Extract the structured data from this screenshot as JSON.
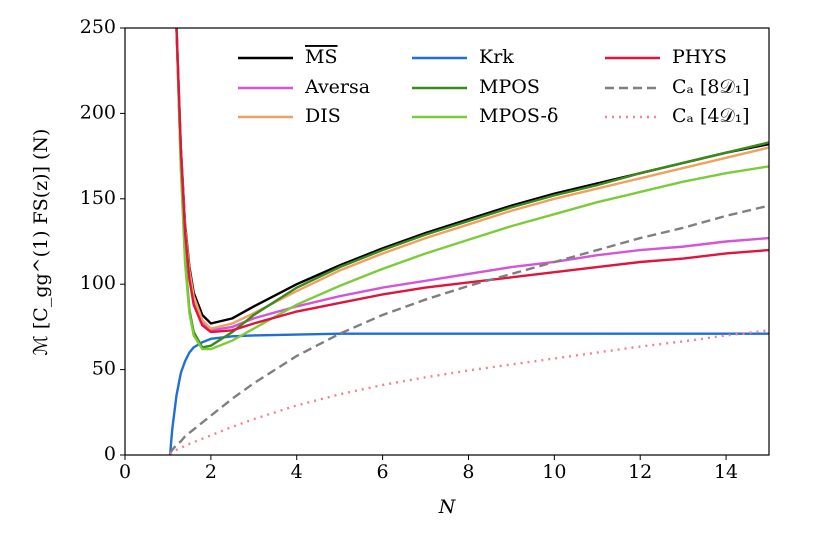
{
  "chart_data": {
    "type": "line",
    "xlabel": "N",
    "ylabel": "ℳ [C_gg^(1) FS(z)] (N)",
    "x": [
      1.05,
      1.1,
      1.2,
      1.3,
      1.4,
      1.5,
      1.6,
      1.8,
      2,
      2.5,
      3,
      4,
      5,
      6,
      7,
      8,
      9,
      10,
      11,
      12,
      13,
      14,
      15
    ],
    "xlim": [
      0,
      15
    ],
    "xticks": [
      0,
      2,
      4,
      6,
      8,
      10,
      12,
      14
    ],
    "ylim": [
      0,
      250
    ],
    "yticks": [
      0,
      50,
      100,
      150,
      200,
      250
    ],
    "grid": false,
    "legend": "top",
    "series": [
      {
        "name": "MS",
        "overline": true,
        "color": "#000000",
        "style": "solid",
        "values": [
          null,
          null,
          250,
          180,
          135,
          110,
          95,
          82,
          77,
          80,
          87,
          100,
          111,
          121,
          130,
          138,
          146,
          153,
          159,
          165,
          171,
          177,
          182
        ]
      },
      {
        "name": "Aversa",
        "color": "#d655d6",
        "style": "solid",
        "values": [
          null,
          null,
          250,
          178,
          132,
          106,
          92,
          78,
          73,
          75,
          80,
          87,
          93,
          98,
          102,
          106,
          110,
          113,
          117,
          120,
          122,
          125,
          127
        ]
      },
      {
        "name": "DIS",
        "color": "#f0a060",
        "style": "solid",
        "values": [
          null,
          null,
          250,
          178,
          133,
          108,
          93,
          79,
          74,
          77,
          83,
          96,
          108,
          118,
          127,
          135,
          143,
          150,
          156,
          162,
          168,
          174,
          180
        ]
      },
      {
        "name": "Krk",
        "color": "#1f6fd6",
        "style": "solid",
        "values": [
          0,
          15,
          35,
          48,
          55,
          60,
          63,
          66,
          68,
          69.5,
          70,
          70.5,
          71,
          71,
          71,
          71,
          71,
          71,
          71,
          71,
          71,
          71,
          71
        ]
      },
      {
        "name": "MPOS",
        "color": "#3a8a1a",
        "style": "solid",
        "values": [
          null,
          null,
          250,
          170,
          115,
          85,
          72,
          63,
          64,
          72,
          82,
          98,
          110,
          120,
          129,
          137,
          145,
          152,
          158,
          165,
          171,
          177,
          183
        ]
      },
      {
        "name": "MPOS-δ",
        "color": "#7ccc3a",
        "style": "solid",
        "values": [
          null,
          null,
          250,
          168,
          112,
          83,
          70,
          62,
          62,
          67,
          74,
          88,
          99,
          109,
          118,
          126,
          134,
          141,
          148,
          154,
          160,
          165,
          169
        ]
      },
      {
        "name": "PHYS",
        "color": "#e0143c",
        "style": "solid",
        "values": [
          null,
          null,
          250,
          180,
          130,
          103,
          88,
          76,
          72,
          73,
          77,
          84,
          89,
          94,
          98,
          101,
          104,
          107,
          110,
          113,
          115,
          118,
          120
        ]
      },
      {
        "name": "Cₐ [8𝒟₁]",
        "color": "#7f7f7f",
        "style": "dashed",
        "values": [
          1,
          3,
          6,
          8,
          11,
          13,
          15,
          19,
          23,
          33,
          42,
          58,
          71,
          82,
          91,
          99,
          106,
          113,
          120,
          127,
          133,
          140,
          146
        ]
      },
      {
        "name": "Cₐ [4𝒟₁]",
        "color": "#f4828f",
        "style": "dotted",
        "values": [
          0.5,
          1.5,
          3,
          4,
          5.5,
          6.5,
          7.5,
          9.5,
          11.5,
          16.5,
          21,
          29,
          35.5,
          41,
          45.5,
          49.5,
          53,
          56.5,
          60,
          63.5,
          66.5,
          70,
          73
        ]
      }
    ]
  }
}
